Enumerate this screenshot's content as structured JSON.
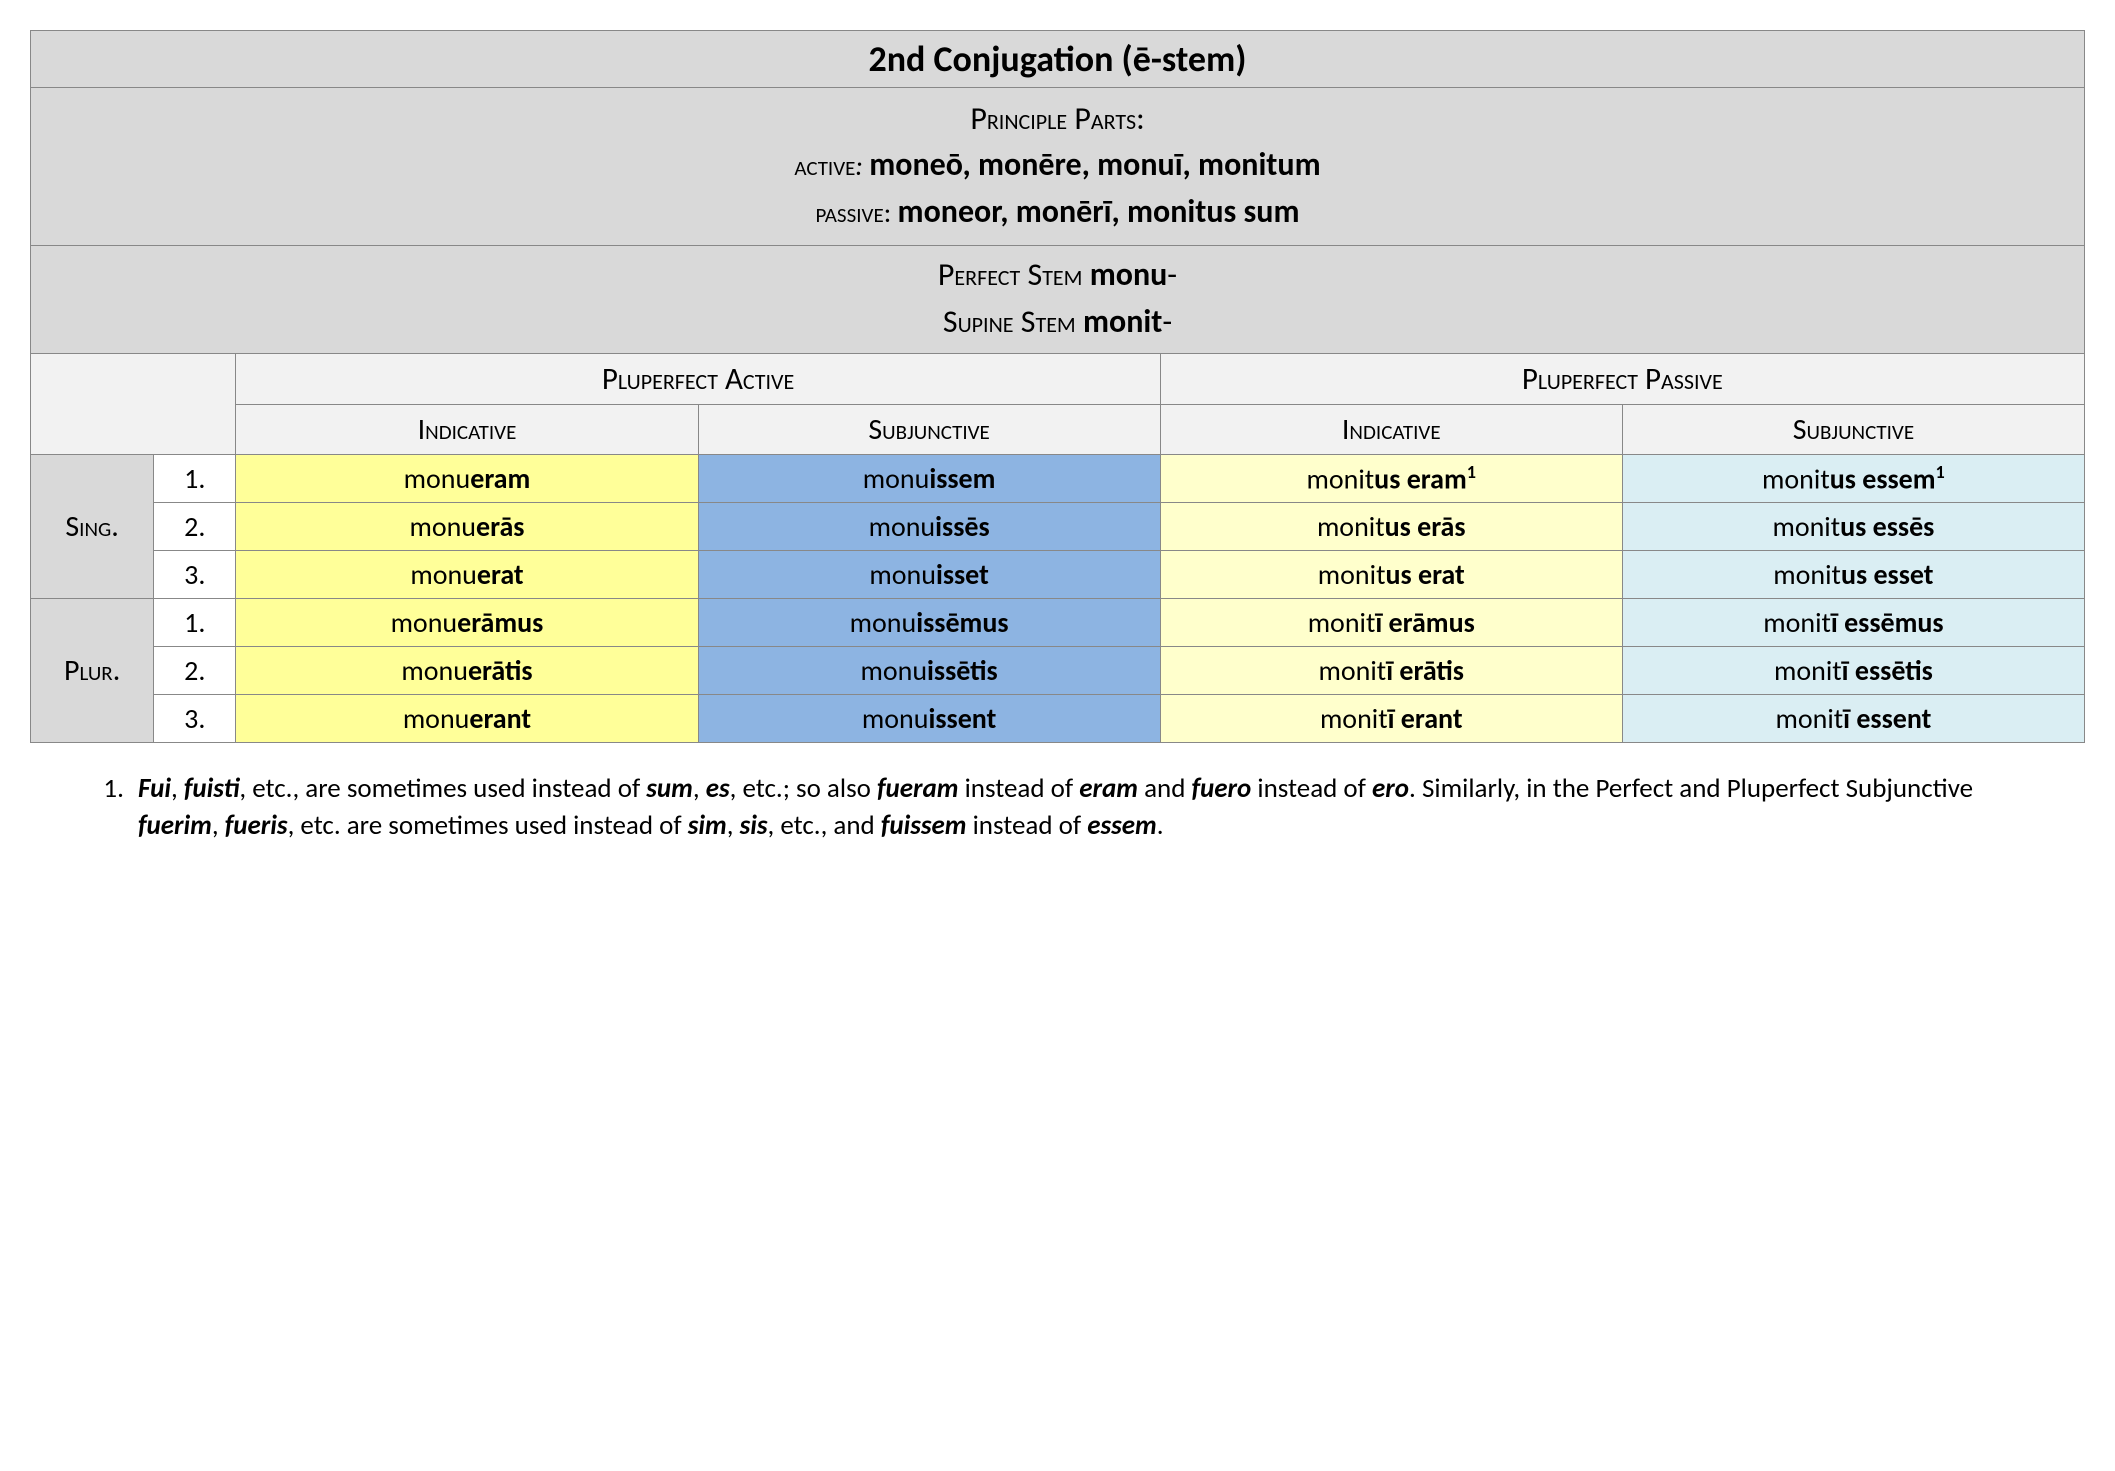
{
  "title": "2nd Conjugation (ē-stem)",
  "principle_parts_label": "Principle Parts:",
  "active_label": "active",
  "active_parts": "moneō, monēre, monuī, monitum",
  "passive_label": "passive",
  "passive_parts": "moneor, monērī, monitus sum",
  "perfect_stem_label": "Perfect Stem",
  "perfect_stem": "monu",
  "supine_stem_label": "Supine Stem",
  "supine_stem": "monit",
  "col_groups": {
    "active": "Pluperfect Active",
    "passive": "Pluperfect Passive"
  },
  "moods": {
    "indicative": "Indicative",
    "subjunctive": "Subjunctive"
  },
  "number_labels": {
    "sing": "Sing.",
    "plur": "Plur."
  },
  "persons": [
    "1.",
    "2.",
    "3."
  ],
  "cells": {
    "act_ind": [
      {
        "stem": "monu",
        "end": "eram"
      },
      {
        "stem": "monu",
        "end": "erās"
      },
      {
        "stem": "monu",
        "end": "erat"
      },
      {
        "stem": "monu",
        "end": "erāmus"
      },
      {
        "stem": "monu",
        "end": "erātis"
      },
      {
        "stem": "monu",
        "end": "erant"
      }
    ],
    "act_subj": [
      {
        "stem": "monu",
        "end": "issem"
      },
      {
        "stem": "monu",
        "end": "issēs"
      },
      {
        "stem": "monu",
        "end": "isset"
      },
      {
        "stem": "monu",
        "end": "issēmus"
      },
      {
        "stem": "monu",
        "end": "issētis"
      },
      {
        "stem": "monu",
        "end": "issent"
      }
    ],
    "pas_ind": [
      {
        "stem": "monit",
        "end": "us eram",
        "sup": "1"
      },
      {
        "stem": "monit",
        "end": "us erās"
      },
      {
        "stem": "monit",
        "end": "us erat"
      },
      {
        "stem": "monit",
        "end": "ī erāmus"
      },
      {
        "stem": "monit",
        "end": "ī erātis"
      },
      {
        "stem": "monit",
        "end": "ī erant"
      }
    ],
    "pas_subj": [
      {
        "stem": "monit",
        "end": "us essem",
        "sup": "1"
      },
      {
        "stem": "monit",
        "end": "us essēs"
      },
      {
        "stem": "monit",
        "end": "us esset"
      },
      {
        "stem": "monit",
        "end": "ī essēmus"
      },
      {
        "stem": "monit",
        "end": "ī essētis"
      },
      {
        "stem": "monit",
        "end": "ī essent"
      }
    ]
  },
  "footnote": {
    "parts": [
      {
        "t": "Fui",
        "i": true
      },
      {
        "t": ", "
      },
      {
        "t": "fuisti",
        "i": true
      },
      {
        "t": ", etc., are sometimes used instead of "
      },
      {
        "t": "sum",
        "i": true
      },
      {
        "t": ", "
      },
      {
        "t": "es",
        "i": true
      },
      {
        "t": ", etc.; so also "
      },
      {
        "t": "fueram",
        "i": true
      },
      {
        "t": " instead of "
      },
      {
        "t": "eram",
        "i": true
      },
      {
        "t": " and "
      },
      {
        "t": "fuero",
        "i": true
      },
      {
        "t": " instead of "
      },
      {
        "t": "ero",
        "i": true
      },
      {
        "t": ". Similarly, in the Perfect and Pluperfect Subjunctive "
      },
      {
        "t": "fuerim",
        "i": true
      },
      {
        "t": ", "
      },
      {
        "t": "fueris",
        "i": true
      },
      {
        "t": ", etc. are sometimes used instead of "
      },
      {
        "t": "sim",
        "i": true
      },
      {
        "t": ", "
      },
      {
        "t": "sis",
        "i": true
      },
      {
        "t": ", etc., and "
      },
      {
        "t": "fuissem",
        "i": true
      },
      {
        "t": " instead of "
      },
      {
        "t": "essem",
        "i": true
      },
      {
        "t": "."
      }
    ]
  },
  "styling": {
    "colors": {
      "header_gray": "#d9d9d9",
      "header_light": "#f2f2f2",
      "active_indicative": "#ffff99",
      "active_subjunctive": "#8db4e2",
      "passive_indicative": "#ffffcc",
      "passive_subjunctive": "#daeef3",
      "border": "#888888",
      "background": "#ffffff",
      "text": "#000000"
    },
    "fonts": {
      "body_pt": 28,
      "title_pt": 36,
      "footnote_pt": 27,
      "family": "Calibri"
    },
    "column_widths_pct": [
      6,
      4,
      22.5,
      22.5,
      22.5,
      22.5
    ]
  }
}
